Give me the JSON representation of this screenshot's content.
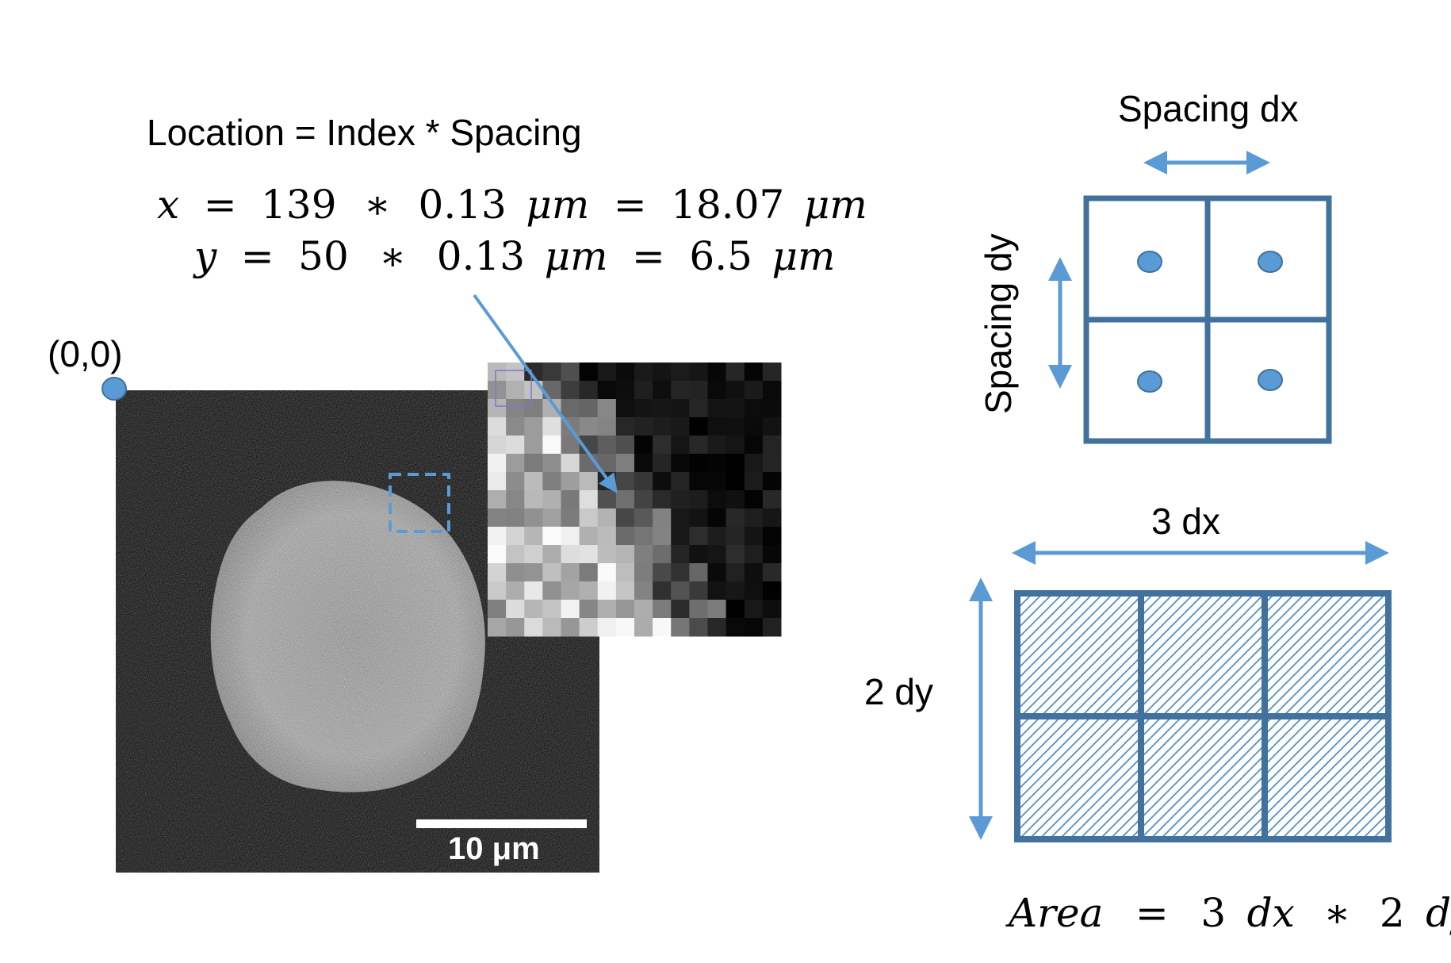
{
  "left_panel": {
    "formula_title": "Location = Index * Spacing",
    "x_equation": {
      "var": "x",
      "eq": "=",
      "index": "139",
      "op": "∗",
      "spacing": "0.13",
      "unit": "μm",
      "result": "18.07"
    },
    "y_equation": {
      "var": "y",
      "eq": "=",
      "index": "50",
      "op": "∗",
      "spacing": "0.13",
      "unit": "μm",
      "result": "6.5"
    },
    "origin_label": "(0,0)",
    "scale_bar_label": "10 μm"
  },
  "right_panel": {
    "spacing_dx_label": "Spacing dx",
    "spacing_dy_label": "Spacing dy",
    "three_dx_label": "3 dx",
    "two_dy_label": "2 dy",
    "area_equation": {
      "lhs": "Area",
      "eq": "=",
      "term1_num": "3",
      "term1_var": "dx",
      "op": "∗",
      "term2_num": "2",
      "term2_var": "dy"
    }
  },
  "colors": {
    "accent": "#5b9bd5",
    "grid_stroke": "#41719c",
    "text": "#000000",
    "micrograph_bg": "#000000"
  }
}
